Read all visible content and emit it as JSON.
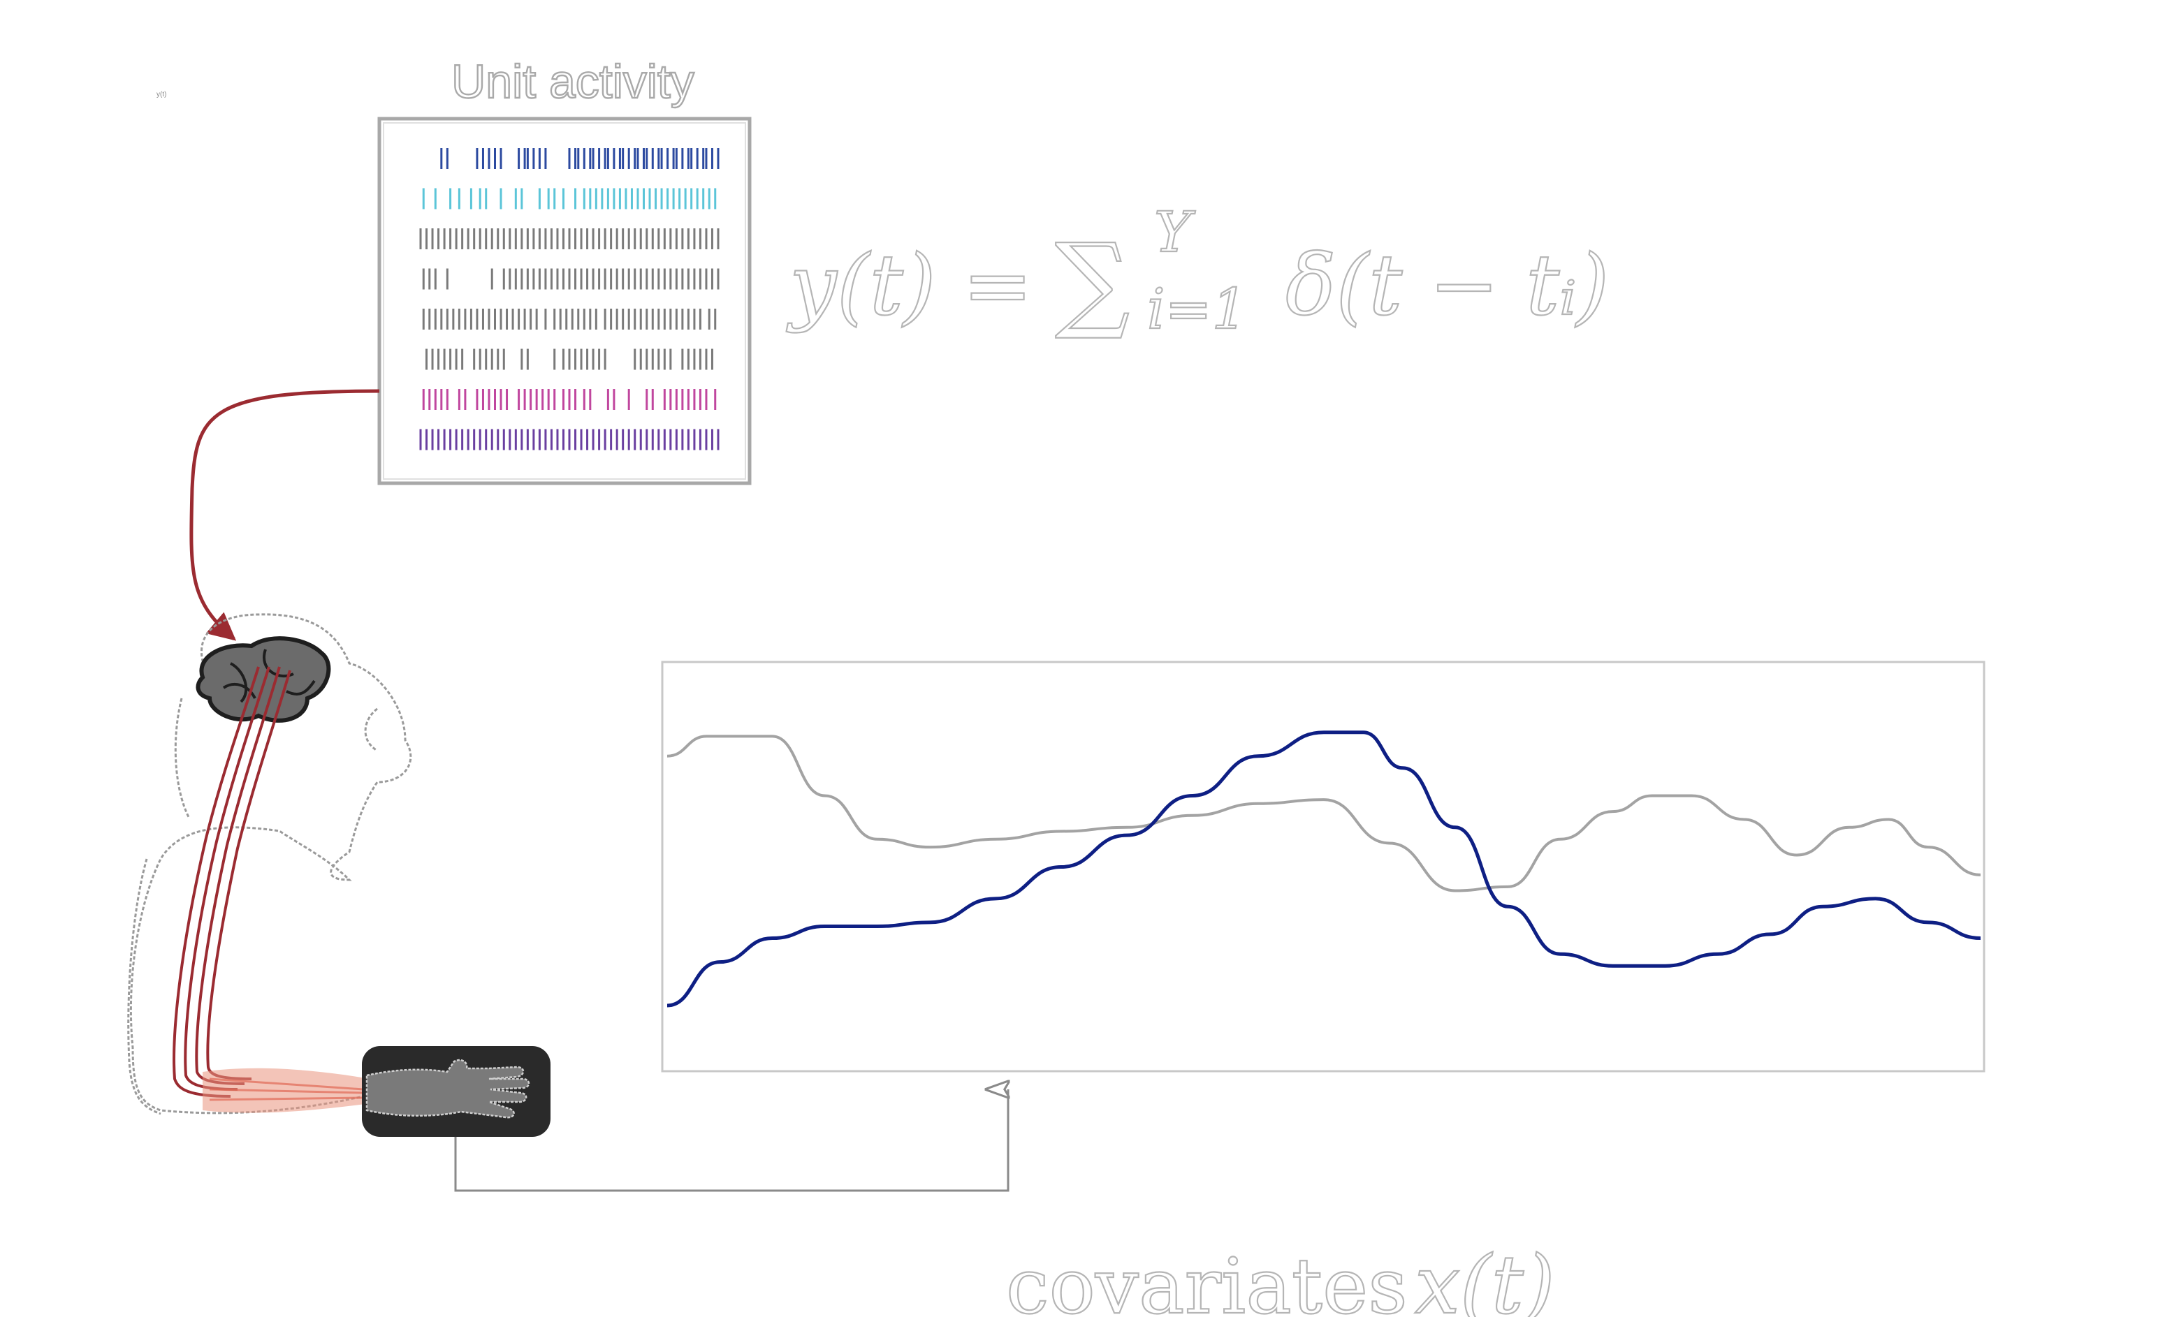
{
  "raster": {
    "title": "Unit activity",
    "rows": [
      {
        "color": "#2c4aa0",
        "spikes": [
          0.07,
          0.09,
          0.19,
          0.21,
          0.23,
          0.25,
          0.27,
          0.33,
          0.35,
          0.36,
          0.38,
          0.4,
          0.42,
          0.5,
          0.52,
          0.53,
          0.55,
          0.57,
          0.58,
          0.6,
          0.62,
          0.63,
          0.65,
          0.67,
          0.68,
          0.7,
          0.72,
          0.73,
          0.75,
          0.76,
          0.78,
          0.8,
          0.81,
          0.83,
          0.85,
          0.86,
          0.88,
          0.9,
          0.91,
          0.93,
          0.95,
          0.96,
          0.98,
          1.0
        ]
      },
      {
        "color": "#5bc5d8",
        "spikes": [
          0.01,
          0.05,
          0.1,
          0.13,
          0.17,
          0.2,
          0.22,
          0.27,
          0.32,
          0.34,
          0.4,
          0.43,
          0.45,
          0.48,
          0.52,
          0.55,
          0.57,
          0.59,
          0.61,
          0.63,
          0.65,
          0.67,
          0.69,
          0.71,
          0.73,
          0.75,
          0.77,
          0.79,
          0.81,
          0.83,
          0.85,
          0.87,
          0.89,
          0.91,
          0.93,
          0.95,
          0.97,
          0.99
        ]
      },
      {
        "color": "#7a7a7a",
        "spikes": [
          0.0,
          0.02,
          0.04,
          0.06,
          0.08,
          0.1,
          0.12,
          0.14,
          0.16,
          0.18,
          0.2,
          0.22,
          0.24,
          0.26,
          0.28,
          0.3,
          0.32,
          0.34,
          0.36,
          0.38,
          0.4,
          0.42,
          0.44,
          0.46,
          0.48,
          0.5,
          0.52,
          0.54,
          0.56,
          0.58,
          0.6,
          0.62,
          0.64,
          0.66,
          0.68,
          0.7,
          0.72,
          0.74,
          0.76,
          0.78,
          0.8,
          0.82,
          0.84,
          0.86,
          0.88,
          0.9,
          0.92,
          0.94,
          0.96,
          0.98,
          1.0
        ]
      },
      {
        "color": "#7a7a7a",
        "spikes": [
          0.01,
          0.03,
          0.05,
          0.09,
          0.24,
          0.28,
          0.3,
          0.32,
          0.34,
          0.36,
          0.38,
          0.4,
          0.42,
          0.44,
          0.46,
          0.48,
          0.5,
          0.52,
          0.54,
          0.56,
          0.58,
          0.6,
          0.62,
          0.64,
          0.66,
          0.68,
          0.7,
          0.72,
          0.74,
          0.76,
          0.78,
          0.8,
          0.82,
          0.84,
          0.86,
          0.88,
          0.9,
          0.92,
          0.94,
          0.96,
          0.98,
          1.0
        ]
      },
      {
        "color": "#7a7a7a",
        "spikes": [
          0.01,
          0.03,
          0.05,
          0.07,
          0.09,
          0.11,
          0.13,
          0.15,
          0.17,
          0.19,
          0.21,
          0.23,
          0.25,
          0.27,
          0.29,
          0.31,
          0.33,
          0.35,
          0.37,
          0.39,
          0.42,
          0.45,
          0.47,
          0.49,
          0.51,
          0.53,
          0.55,
          0.57,
          0.59,
          0.62,
          0.64,
          0.66,
          0.68,
          0.7,
          0.72,
          0.74,
          0.76,
          0.78,
          0.8,
          0.82,
          0.84,
          0.86,
          0.88,
          0.9,
          0.92,
          0.94,
          0.97,
          0.99
        ]
      },
      {
        "color": "#7a7a7a",
        "spikes": [
          0.02,
          0.04,
          0.06,
          0.08,
          0.1,
          0.12,
          0.14,
          0.18,
          0.2,
          0.22,
          0.24,
          0.26,
          0.28,
          0.34,
          0.36,
          0.45,
          0.48,
          0.5,
          0.52,
          0.54,
          0.56,
          0.58,
          0.6,
          0.62,
          0.72,
          0.74,
          0.76,
          0.78,
          0.8,
          0.82,
          0.84,
          0.88,
          0.9,
          0.92,
          0.94,
          0.96,
          0.98
        ]
      },
      {
        "color": "#c0469e",
        "spikes": [
          0.01,
          0.03,
          0.05,
          0.07,
          0.09,
          0.13,
          0.15,
          0.19,
          0.21,
          0.23,
          0.25,
          0.27,
          0.29,
          0.33,
          0.35,
          0.37,
          0.39,
          0.41,
          0.43,
          0.45,
          0.48,
          0.5,
          0.52,
          0.55,
          0.57,
          0.63,
          0.65,
          0.7,
          0.76,
          0.78,
          0.82,
          0.84,
          0.86,
          0.88,
          0.9,
          0.92,
          0.94,
          0.96,
          0.99
        ]
      },
      {
        "color": "#6a3fa0",
        "spikes": [
          0.0,
          0.02,
          0.04,
          0.06,
          0.08,
          0.1,
          0.12,
          0.14,
          0.16,
          0.18,
          0.2,
          0.22,
          0.24,
          0.26,
          0.28,
          0.3,
          0.32,
          0.34,
          0.36,
          0.38,
          0.4,
          0.42,
          0.44,
          0.46,
          0.48,
          0.5,
          0.52,
          0.54,
          0.56,
          0.58,
          0.6,
          0.62,
          0.64,
          0.66,
          0.68,
          0.7,
          0.72,
          0.74,
          0.76,
          0.78,
          0.8,
          0.82,
          0.84,
          0.86,
          0.88,
          0.9,
          0.92,
          0.94,
          0.96,
          0.98,
          1.0
        ]
      }
    ]
  },
  "equation": {
    "lhs": "y(t) =",
    "sum": "∑",
    "upper": "Y",
    "lower": "i=1",
    "body": "δ(t − tᵢ)"
  },
  "covariates_label": {
    "word": "covariates",
    "symbol": "x(t)"
  },
  "tiny_label": "y(t)",
  "covariate_panel": {
    "series": [
      {
        "color": "#a3a3a3",
        "x": [
          0,
          0.03,
          0.08,
          0.12,
          0.16,
          0.2,
          0.25,
          0.3,
          0.35,
          0.4,
          0.45,
          0.5,
          0.55,
          0.6,
          0.64,
          0.68,
          0.72,
          0.75,
          0.78,
          0.82,
          0.86,
          0.9,
          0.93,
          0.96,
          1.0
        ],
        "y": [
          0.78,
          0.83,
          0.83,
          0.68,
          0.57,
          0.55,
          0.57,
          0.59,
          0.6,
          0.63,
          0.66,
          0.67,
          0.56,
          0.44,
          0.45,
          0.57,
          0.64,
          0.68,
          0.68,
          0.62,
          0.53,
          0.6,
          0.62,
          0.55,
          0.48
        ]
      },
      {
        "color": "#0e1f84",
        "x": [
          0,
          0.04,
          0.08,
          0.12,
          0.16,
          0.2,
          0.25,
          0.3,
          0.35,
          0.4,
          0.45,
          0.5,
          0.53,
          0.56,
          0.6,
          0.64,
          0.68,
          0.72,
          0.76,
          0.8,
          0.84,
          0.88,
          0.92,
          0.96,
          1.0
        ],
        "y": [
          0.15,
          0.26,
          0.32,
          0.35,
          0.35,
          0.36,
          0.42,
          0.5,
          0.58,
          0.68,
          0.78,
          0.84,
          0.84,
          0.75,
          0.6,
          0.4,
          0.28,
          0.25,
          0.25,
          0.28,
          0.33,
          0.4,
          0.42,
          0.36,
          0.32
        ]
      }
    ]
  },
  "colors": {
    "connector_red": "#9b2b31",
    "hand_box": "#2a2a2a",
    "panel_border": "#c8c8c8",
    "muscle": "#e9937e"
  },
  "icons": {
    "monkey": "monkey-silhouette-icon",
    "brain": "brain-icon",
    "hand": "hand-icon"
  }
}
